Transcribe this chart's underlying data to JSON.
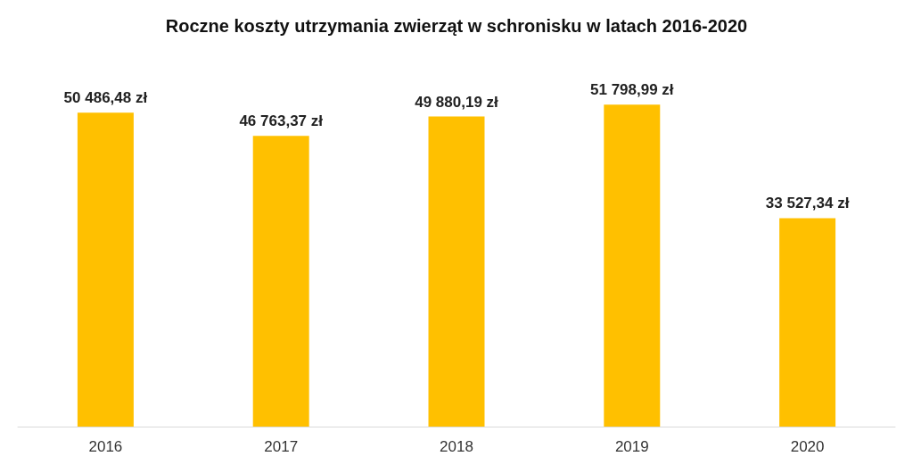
{
  "chart_data": {
    "type": "bar",
    "title": "Roczne koszty utrzymania zwierząt w schronisku w latach 2016-2020",
    "categories": [
      "2016",
      "2017",
      "2018",
      "2019",
      "2020"
    ],
    "values": [
      50486.48,
      46763.37,
      49880.19,
      51798.99,
      33527.34
    ],
    "value_labels": [
      "50 486,48 zł",
      "46 763,37 zł",
      "49 880,19 zł",
      "51 798,99 zł",
      "33 527,34 zł"
    ],
    "color": "#ffc000",
    "grid": false,
    "tick_labels": "x"
  }
}
